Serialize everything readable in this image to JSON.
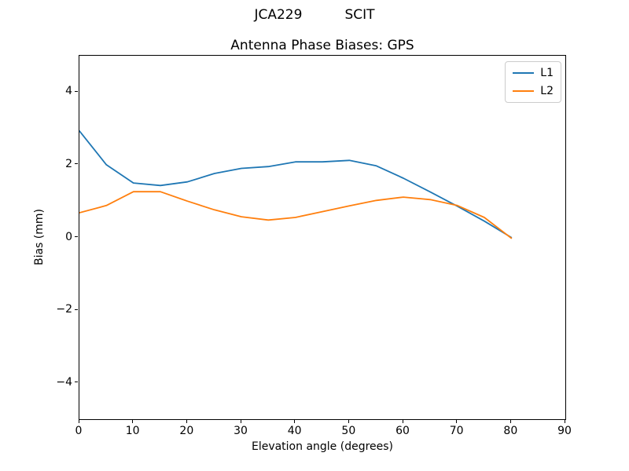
{
  "suptitle": "JCA229          SCIT",
  "chart_data": {
    "type": "line",
    "title": "Antenna Phase Biases: GPS",
    "xlabel": "Elevation angle (degrees)",
    "ylabel": "Bias (mm)",
    "xlim": [
      0,
      90
    ],
    "ylim": [
      -5,
      5
    ],
    "xticks": [
      0,
      10,
      20,
      30,
      40,
      50,
      60,
      70,
      80,
      90
    ],
    "yticks": [
      -4,
      -2,
      0,
      2,
      4
    ],
    "grid": false,
    "legend_position": "upper right",
    "x": [
      0,
      5,
      10,
      15,
      20,
      25,
      30,
      35,
      40,
      45,
      50,
      55,
      60,
      65,
      70,
      75,
      80
    ],
    "series": [
      {
        "name": "L1",
        "color": "#1f77b4",
        "values": [
          2.93,
          2.0,
          1.5,
          1.43,
          1.53,
          1.76,
          1.9,
          1.95,
          2.08,
          2.08,
          2.12,
          1.97,
          1.63,
          1.25,
          0.86,
          0.45,
          0.0
        ]
      },
      {
        "name": "L2",
        "color": "#ff7f0e",
        "values": [
          0.68,
          0.88,
          1.26,
          1.26,
          1.0,
          0.76,
          0.57,
          0.48,
          0.55,
          0.71,
          0.87,
          1.02,
          1.11,
          1.04,
          0.88,
          0.55,
          -0.02
        ]
      }
    ]
  }
}
